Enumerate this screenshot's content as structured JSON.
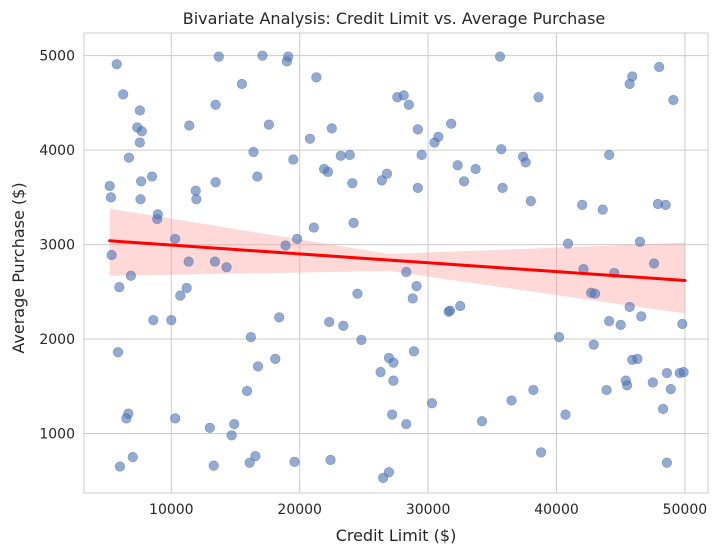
{
  "chart_data": {
    "type": "scatter",
    "title": "Bivariate Analysis: Credit Limit vs. Average Purchase",
    "xlabel": "Credit Limit ($)",
    "ylabel": "Average Purchase ($)",
    "xlim": [
      3200,
      51800
    ],
    "ylim": [
      370,
      5240
    ],
    "xticks": [
      10000,
      20000,
      30000,
      40000,
      50000
    ],
    "yticks": [
      1000,
      2000,
      3000,
      4000,
      5000
    ],
    "grid": true,
    "colors": {
      "points": "#4c72b0",
      "regression_line": "#ff0000",
      "confidence_band": "#ff9999",
      "grid": "#cccccc",
      "background": "#ffffff"
    },
    "points": [
      [
        5200,
        3620
      ],
      [
        5300,
        3500
      ],
      [
        5350,
        2890
      ],
      [
        5750,
        4910
      ],
      [
        5850,
        1860
      ],
      [
        5950,
        2550
      ],
      [
        6000,
        650
      ],
      [
        6250,
        4590
      ],
      [
        6500,
        1160
      ],
      [
        6650,
        1210
      ],
      [
        6700,
        3920
      ],
      [
        6850,
        2670
      ],
      [
        7000,
        750
      ],
      [
        7350,
        4240
      ],
      [
        7550,
        4420
      ],
      [
        7550,
        4080
      ],
      [
        7600,
        3480
      ],
      [
        7650,
        3670
      ],
      [
        7700,
        4200
      ],
      [
        8500,
        3720
      ],
      [
        8600,
        2200
      ],
      [
        8900,
        3270
      ],
      [
        8950,
        3320
      ],
      [
        10000,
        2200
      ],
      [
        10300,
        3060
      ],
      [
        10300,
        1160
      ],
      [
        10700,
        2460
      ],
      [
        11200,
        2540
      ],
      [
        11350,
        2820
      ],
      [
        11400,
        4260
      ],
      [
        11900,
        3570
      ],
      [
        11950,
        3480
      ],
      [
        13000,
        1060
      ],
      [
        13300,
        660
      ],
      [
        13400,
        2820
      ],
      [
        13450,
        4480
      ],
      [
        13450,
        3660
      ],
      [
        13700,
        4990
      ],
      [
        14300,
        2760
      ],
      [
        14700,
        980
      ],
      [
        14900,
        1100
      ],
      [
        15500,
        4700
      ],
      [
        15900,
        1450
      ],
      [
        16100,
        690
      ],
      [
        16200,
        2020
      ],
      [
        16400,
        3980
      ],
      [
        16550,
        760
      ],
      [
        16700,
        3720
      ],
      [
        16750,
        1710
      ],
      [
        17100,
        5000
      ],
      [
        17600,
        4270
      ],
      [
        18100,
        1790
      ],
      [
        18400,
        2230
      ],
      [
        18900,
        2990
      ],
      [
        19000,
        4940
      ],
      [
        19100,
        4990
      ],
      [
        19500,
        3900
      ],
      [
        19600,
        700
      ],
      [
        19800,
        3060
      ],
      [
        20800,
        4120
      ],
      [
        21100,
        3180
      ],
      [
        21300,
        4770
      ],
      [
        21900,
        3800
      ],
      [
        22200,
        3770
      ],
      [
        22300,
        2180
      ],
      [
        22400,
        720
      ],
      [
        22500,
        4230
      ],
      [
        23200,
        3940
      ],
      [
        23400,
        2140
      ],
      [
        23900,
        3950
      ],
      [
        24100,
        3650
      ],
      [
        24200,
        3230
      ],
      [
        24500,
        2480
      ],
      [
        24800,
        1990
      ],
      [
        26300,
        1650
      ],
      [
        26400,
        3680
      ],
      [
        26500,
        530
      ],
      [
        26800,
        3750
      ],
      [
        26950,
        590
      ],
      [
        26950,
        1800
      ],
      [
        27200,
        1200
      ],
      [
        27300,
        1750
      ],
      [
        27300,
        1560
      ],
      [
        27600,
        4560
      ],
      [
        28100,
        4580
      ],
      [
        28300,
        2710
      ],
      [
        28300,
        1100
      ],
      [
        28500,
        4480
      ],
      [
        28800,
        2430
      ],
      [
        28900,
        1870
      ],
      [
        29100,
        2560
      ],
      [
        29200,
        3600
      ],
      [
        29200,
        4220
      ],
      [
        29500,
        3950
      ],
      [
        30300,
        1320
      ],
      [
        30500,
        4080
      ],
      [
        30800,
        4140
      ],
      [
        31600,
        2290
      ],
      [
        31700,
        2300
      ],
      [
        31800,
        4280
      ],
      [
        32300,
        3840
      ],
      [
        32500,
        2350
      ],
      [
        32800,
        3670
      ],
      [
        33700,
        3800
      ],
      [
        34200,
        1130
      ],
      [
        35600,
        4990
      ],
      [
        35700,
        4010
      ],
      [
        35800,
        3600
      ],
      [
        36500,
        1350
      ],
      [
        37400,
        3930
      ],
      [
        37600,
        3870
      ],
      [
        38000,
        3460
      ],
      [
        38200,
        1460
      ],
      [
        38600,
        4560
      ],
      [
        38800,
        800
      ],
      [
        40200,
        2020
      ],
      [
        40700,
        1200
      ],
      [
        40900,
        3010
      ],
      [
        42000,
        3420
      ],
      [
        42100,
        2740
      ],
      [
        42700,
        2490
      ],
      [
        42900,
        1940
      ],
      [
        43000,
        2480
      ],
      [
        43600,
        3370
      ],
      [
        43900,
        1460
      ],
      [
        44100,
        2190
      ],
      [
        44100,
        3950
      ],
      [
        44500,
        2700
      ],
      [
        45000,
        2150
      ],
      [
        45400,
        1560
      ],
      [
        45500,
        1510
      ],
      [
        45700,
        2340
      ],
      [
        45700,
        4700
      ],
      [
        45900,
        1780
      ],
      [
        45900,
        4780
      ],
      [
        46300,
        1790
      ],
      [
        46500,
        3030
      ],
      [
        46600,
        2240
      ],
      [
        47500,
        1540
      ],
      [
        47600,
        2800
      ],
      [
        47900,
        3430
      ],
      [
        48000,
        4880
      ],
      [
        48300,
        1260
      ],
      [
        48500,
        3420
      ],
      [
        48600,
        1640
      ],
      [
        48600,
        690
      ],
      [
        48900,
        1470
      ],
      [
        49100,
        4530
      ],
      [
        49600,
        1640
      ],
      [
        49800,
        2160
      ],
      [
        49900,
        1650
      ]
    ],
    "regression": {
      "x": [
        5200,
        50000
      ],
      "y": [
        3040,
        2620
      ],
      "ci_upper": [
        3380,
        3020
      ],
      "ci_lower": [
        2670,
        2270
      ],
      "ci_mid_x": 27000,
      "ci_mid_upper": 2900,
      "ci_mid_lower": 2720
    }
  }
}
